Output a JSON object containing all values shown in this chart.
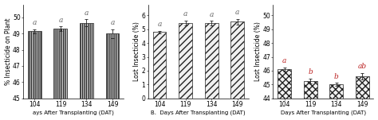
{
  "categories": [
    "104",
    "119",
    "134",
    "149"
  ],
  "panel_A": {
    "values": [
      49.15,
      49.3,
      49.65,
      49.0
    ],
    "errors": [
      0.12,
      0.15,
      0.22,
      0.28
    ],
    "ylabel": "% Insecticide on Plant",
    "xlabel": "ays After Transplanting (DAT)",
    "ylim": [
      45,
      50.8
    ],
    "yticks": [
      45,
      46,
      47,
      48,
      49,
      50
    ],
    "labels": [
      "a",
      "a",
      "a",
      "a"
    ],
    "label_color": "#666666",
    "hatch": "|||||||"
  },
  "panel_B": {
    "values": [
      4.8,
      5.45,
      5.45,
      5.55
    ],
    "errors": [
      0.1,
      0.18,
      0.15,
      0.2
    ],
    "ylabel": "Lost Insecticide (%)",
    "xlabel": "B.  Days After Transplanting (DAT)",
    "ylim": [
      0,
      6.8
    ],
    "yticks": [
      0,
      1,
      2,
      3,
      4,
      5,
      6
    ],
    "labels": [
      "a",
      "a",
      "a",
      "a"
    ],
    "label_color": "#666666",
    "hatch": "////"
  },
  "panel_C": {
    "values": [
      46.1,
      45.25,
      45.0,
      45.6
    ],
    "errors": [
      0.15,
      0.2,
      0.12,
      0.25
    ],
    "ylabel": "Lost Insecticide (%)",
    "xlabel": "Days After Transplanting (DAT)",
    "ylim": [
      44,
      50.8
    ],
    "yticks": [
      44,
      45,
      46,
      47,
      48,
      49,
      50
    ],
    "labels": [
      "a",
      "b",
      "b",
      "ab"
    ],
    "label_color": "#bb2222",
    "hatch": "xxxx"
  },
  "bar_color": "#f0f0f0",
  "bar_edgecolor": "#222222",
  "tick_fontsize": 5.5,
  "label_fontsize": 5.5,
  "xlabel_fontsize": 5.0,
  "sig_fontsize": 6.5
}
